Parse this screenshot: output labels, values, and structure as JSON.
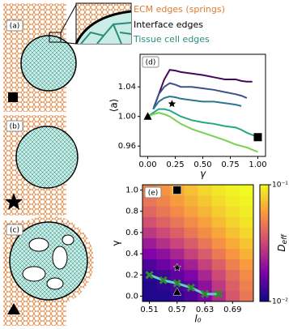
{
  "legend": {
    "ecm": "ECM edges (springs)",
    "interface": "Interface edges",
    "tissue": "Tissue cell edges"
  },
  "panels": [
    "(a)",
    "(b)",
    "(c)"
  ],
  "chart_data": [
    {
      "type": "line",
      "panel": "(d)",
      "xlabel": "γ",
      "ylabel": "⟨a⟩",
      "x": [
        0,
        0.05,
        0.1,
        0.15,
        0.2,
        0.25,
        0.3,
        0.4,
        0.5,
        0.6,
        0.7,
        0.8,
        0.85,
        0.9,
        0.95,
        1.0
      ],
      "series": [
        {
          "color": "#46085c",
          "values": [
            null,
            1.01,
            1.03,
            1.05,
            1.063,
            1.062,
            1.06,
            1.058,
            1.056,
            1.053,
            1.05,
            1.05,
            1.048,
            1.047,
            1.047,
            null
          ]
        },
        {
          "color": "#3b528b",
          "values": [
            null,
            1.01,
            1.03,
            1.04,
            1.045,
            1.043,
            1.04,
            1.04,
            1.038,
            1.036,
            1.033,
            1.03,
            1.028,
            1.025,
            null,
            null
          ]
        },
        {
          "color": "#2a788e",
          "values": [
            null,
            1.01,
            1.02,
            1.025,
            1.027,
            1.026,
            1.024,
            1.022,
            1.02,
            1.02,
            1.018,
            1.016,
            1.014,
            null,
            null,
            null
          ]
        },
        {
          "color": "#22a884",
          "values": [
            1.0,
            1.005,
            1.01,
            1.01,
            1.008,
            1.004,
            1.0,
            0.995,
            0.992,
            0.99,
            0.987,
            0.985,
            0.982,
            0.978,
            0.975,
            0.972
          ]
        },
        {
          "color": "#7ad151",
          "values": [
            1.0,
            1.003,
            1.005,
            1.003,
            1.0,
            0.995,
            0.99,
            0.983,
            0.978,
            0.973,
            0.968,
            0.962,
            0.96,
            0.958,
            0.955,
            0.952
          ]
        }
      ],
      "markers": [
        {
          "shape": "triangle",
          "x": 0,
          "y": 1.0
        },
        {
          "shape": "star",
          "x": 0.22,
          "y": 1.017
        },
        {
          "shape": "square",
          "x": 1.0,
          "y": 0.972
        }
      ],
      "xlim": [
        -0.07,
        1.07
      ],
      "ylim": [
        0.946,
        1.084
      ],
      "xticks": [
        {
          "value": 0,
          "label": "0.00"
        },
        0.25,
        {
          "value": 0.5,
          "label": "0.50"
        },
        0.75,
        {
          "value": 1,
          "label": "1.00"
        }
      ],
      "yticks": [
        0.96,
        {
          "value": 1,
          "label": "1.00"
        },
        1.04
      ]
    },
    {
      "type": "heatmap",
      "panel": "(e)",
      "xlabel": "l₀",
      "ylabel": "γ",
      "colorbar_label": "D",
      "colorbar_label_sub": "eff",
      "colormap": "plasma",
      "log_scale": true,
      "clim": [
        0.01,
        0.1
      ],
      "cticks": [
        {
          "value": 0.1,
          "label": "10⁻¹"
        },
        {
          "value": 0.01,
          "label": "10⁻²"
        }
      ],
      "x": [
        0.51,
        0.54,
        0.57,
        0.6,
        0.63,
        0.66,
        0.69,
        0.72
      ],
      "y": [
        0,
        0.1,
        0.2,
        0.3,
        0.4,
        0.5,
        0.6,
        0.7,
        0.8,
        0.9,
        1.0
      ],
      "z": [
        [
          0.011,
          0.011,
          0.012,
          0.014,
          0.018,
          0.025,
          0.035,
          0.045
        ],
        [
          0.011,
          0.012,
          0.013,
          0.015,
          0.02,
          0.028,
          0.038,
          0.048
        ],
        [
          0.012,
          0.013,
          0.015,
          0.018,
          0.024,
          0.032,
          0.042,
          0.052
        ],
        [
          0.014,
          0.016,
          0.019,
          0.023,
          0.03,
          0.038,
          0.048,
          0.058
        ],
        [
          0.018,
          0.02,
          0.024,
          0.03,
          0.037,
          0.046,
          0.056,
          0.066
        ],
        [
          0.022,
          0.026,
          0.031,
          0.037,
          0.045,
          0.054,
          0.064,
          0.074
        ],
        [
          0.028,
          0.032,
          0.038,
          0.045,
          0.053,
          0.062,
          0.072,
          0.082
        ],
        [
          0.034,
          0.039,
          0.045,
          0.052,
          0.06,
          0.07,
          0.08,
          0.088
        ],
        [
          0.04,
          0.045,
          0.052,
          0.06,
          0.068,
          0.077,
          0.086,
          0.093
        ],
        [
          0.045,
          0.05,
          0.058,
          0.066,
          0.075,
          0.084,
          0.092,
          0.097
        ],
        [
          0.05,
          0.055,
          0.063,
          0.072,
          0.082,
          0.09,
          0.096,
          0.1
        ]
      ],
      "points": {
        "color": "#2e8b2e",
        "x": [
          0.51,
          0.54,
          0.57,
          0.6,
          0.63,
          0.66
        ],
        "y": [
          0.2,
          0.15,
          0.12,
          0.08,
          0.02,
          0.02
        ]
      },
      "markers": [
        {
          "shape": "square",
          "x": 0.57,
          "y": 1.0
        },
        {
          "shape": "star",
          "x": 0.57,
          "y": 0.27
        },
        {
          "shape": "triangle",
          "x": 0.57,
          "y": 0.04
        }
      ],
      "xlim": [
        0.495,
        0.735
      ],
      "ylim": [
        -0.05,
        1.05
      ],
      "xticks": [
        0.51,
        0.57,
        0.63,
        0.69
      ],
      "yticks": [
        {
          "value": 0,
          "label": "0.0"
        },
        0.2,
        0.4,
        0.6,
        0.8,
        {
          "value": 1,
          "label": "1.0"
        }
      ]
    }
  ]
}
